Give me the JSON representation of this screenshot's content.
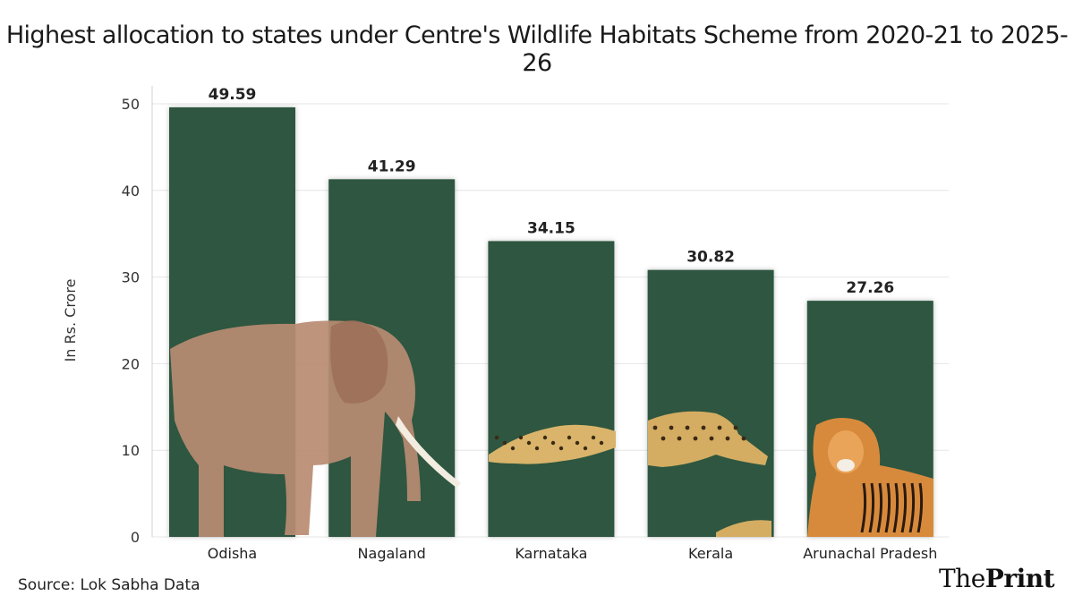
{
  "chart_data": {
    "type": "bar",
    "title": "Highest allocation to states under Centre's Wildlife Habitats Scheme from 2020-21 to 2025-26",
    "ylabel": "In Rs. Crore",
    "xlabel": "",
    "categories": [
      "Odisha",
      "Nagaland",
      "Karnataka",
      "Kerala",
      "Arunachal Pradesh"
    ],
    "values": [
      49.59,
      41.29,
      34.15,
      30.82,
      27.26
    ],
    "data_labels": [
      "49.59",
      "41.29",
      "34.15",
      "30.82",
      "27.26"
    ],
    "ylim": [
      0,
      50
    ],
    "yticks": [
      0,
      10,
      20,
      30,
      40,
      50
    ],
    "grid": true,
    "bar_color": "#2d5641",
    "illustrations": [
      "elephant",
      "elephant",
      "cheetah",
      "leopard",
      "tiger"
    ]
  },
  "footer": {
    "source": "Source: Lok Sabha Data",
    "brand_part1": "The",
    "brand_part2": "Print"
  }
}
